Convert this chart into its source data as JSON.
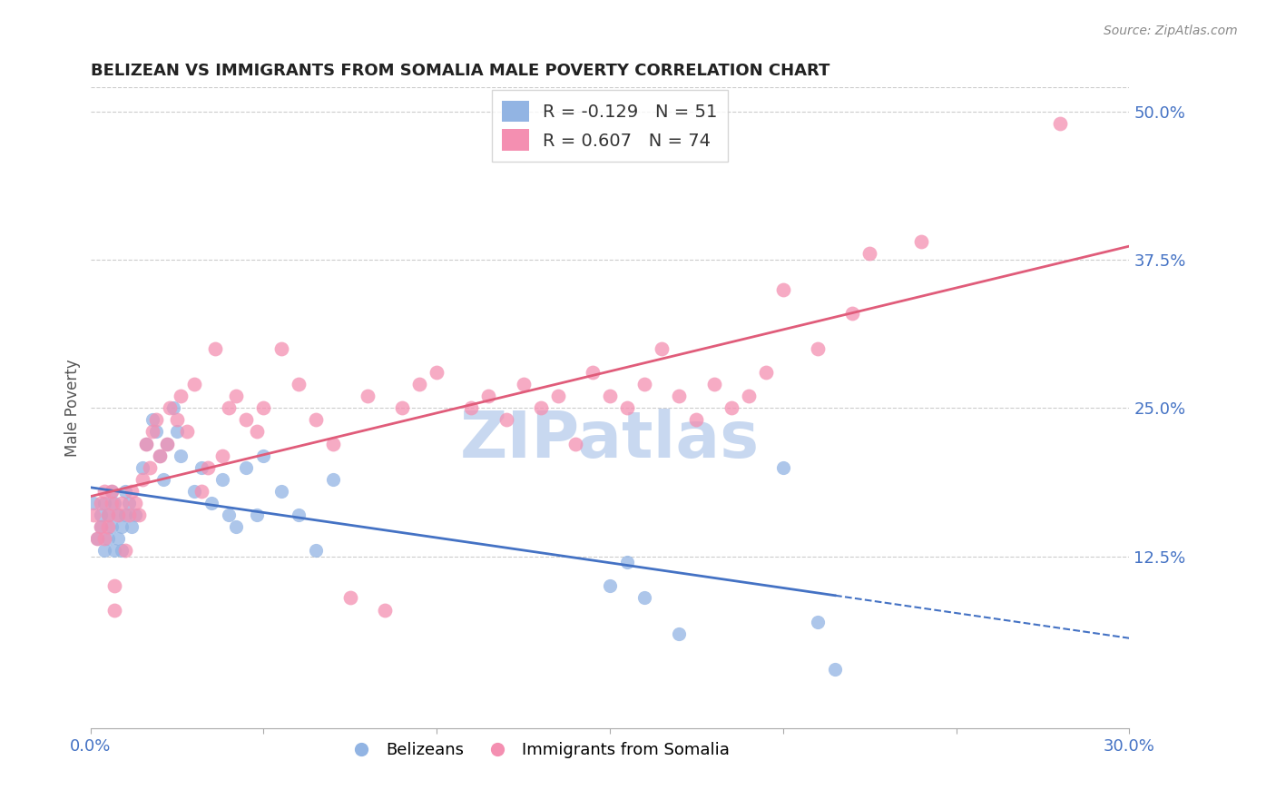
{
  "title": "BELIZEAN VS IMMIGRANTS FROM SOMALIA MALE POVERTY CORRELATION CHART",
  "source": "Source: ZipAtlas.com",
  "ylabel": "Male Poverty",
  "xlim": [
    0.0,
    0.3
  ],
  "ylim": [
    -0.02,
    0.52
  ],
  "yticks": [
    0.0,
    0.125,
    0.25,
    0.375,
    0.5
  ],
  "ytick_labels": [
    "",
    "12.5%",
    "25.0%",
    "37.5%",
    "50.0%"
  ],
  "xticks": [
    0.0,
    0.05,
    0.1,
    0.15,
    0.2,
    0.25,
    0.3
  ],
  "xtick_labels": [
    "0.0%",
    "",
    "",
    "",
    "",
    "",
    "30.0%"
  ],
  "belizean_R": -0.129,
  "belizean_N": 51,
  "somalia_R": 0.607,
  "somalia_N": 74,
  "belizean_color": "#92b4e3",
  "somalia_color": "#f48fb1",
  "belizean_line_color": "#4472c4",
  "somalia_line_color": "#e05c7a",
  "watermark": "ZIPatlas",
  "watermark_color": "#c8d8f0",
  "background_color": "#ffffff",
  "belizean_x": [
    0.001,
    0.002,
    0.003,
    0.003,
    0.004,
    0.004,
    0.005,
    0.005,
    0.006,
    0.006,
    0.007,
    0.007,
    0.008,
    0.008,
    0.009,
    0.009,
    0.01,
    0.01,
    0.011,
    0.012,
    0.013,
    0.015,
    0.016,
    0.018,
    0.019,
    0.02,
    0.021,
    0.022,
    0.024,
    0.025,
    0.026,
    0.03,
    0.032,
    0.035,
    0.038,
    0.04,
    0.042,
    0.045,
    0.048,
    0.05,
    0.055,
    0.06,
    0.065,
    0.07,
    0.15,
    0.155,
    0.16,
    0.17,
    0.2,
    0.21,
    0.215
  ],
  "belizean_y": [
    0.17,
    0.14,
    0.15,
    0.16,
    0.13,
    0.17,
    0.14,
    0.16,
    0.15,
    0.18,
    0.13,
    0.17,
    0.16,
    0.14,
    0.15,
    0.13,
    0.18,
    0.16,
    0.17,
    0.15,
    0.16,
    0.2,
    0.22,
    0.24,
    0.23,
    0.21,
    0.19,
    0.22,
    0.25,
    0.23,
    0.21,
    0.18,
    0.2,
    0.17,
    0.19,
    0.16,
    0.15,
    0.2,
    0.16,
    0.21,
    0.18,
    0.16,
    0.13,
    0.19,
    0.1,
    0.12,
    0.09,
    0.06,
    0.2,
    0.07,
    0.03
  ],
  "somalia_x": [
    0.001,
    0.002,
    0.003,
    0.003,
    0.004,
    0.004,
    0.005,
    0.005,
    0.006,
    0.006,
    0.007,
    0.007,
    0.008,
    0.009,
    0.01,
    0.011,
    0.012,
    0.013,
    0.014,
    0.015,
    0.016,
    0.017,
    0.018,
    0.019,
    0.02,
    0.022,
    0.023,
    0.025,
    0.026,
    0.028,
    0.03,
    0.032,
    0.034,
    0.036,
    0.038,
    0.04,
    0.042,
    0.045,
    0.048,
    0.05,
    0.055,
    0.06,
    0.065,
    0.07,
    0.075,
    0.08,
    0.085,
    0.09,
    0.095,
    0.1,
    0.11,
    0.115,
    0.12,
    0.125,
    0.13,
    0.135,
    0.14,
    0.145,
    0.15,
    0.155,
    0.16,
    0.165,
    0.17,
    0.175,
    0.18,
    0.185,
    0.19,
    0.195,
    0.2,
    0.21,
    0.22,
    0.225,
    0.24,
    0.28
  ],
  "somalia_y": [
    0.16,
    0.14,
    0.17,
    0.15,
    0.14,
    0.18,
    0.16,
    0.15,
    0.17,
    0.18,
    0.08,
    0.1,
    0.16,
    0.17,
    0.13,
    0.16,
    0.18,
    0.17,
    0.16,
    0.19,
    0.22,
    0.2,
    0.23,
    0.24,
    0.21,
    0.22,
    0.25,
    0.24,
    0.26,
    0.23,
    0.27,
    0.18,
    0.2,
    0.3,
    0.21,
    0.25,
    0.26,
    0.24,
    0.23,
    0.25,
    0.3,
    0.27,
    0.24,
    0.22,
    0.09,
    0.26,
    0.08,
    0.25,
    0.27,
    0.28,
    0.25,
    0.26,
    0.24,
    0.27,
    0.25,
    0.26,
    0.22,
    0.28,
    0.26,
    0.25,
    0.27,
    0.3,
    0.26,
    0.24,
    0.27,
    0.25,
    0.26,
    0.28,
    0.35,
    0.3,
    0.33,
    0.38,
    0.39,
    0.49
  ]
}
